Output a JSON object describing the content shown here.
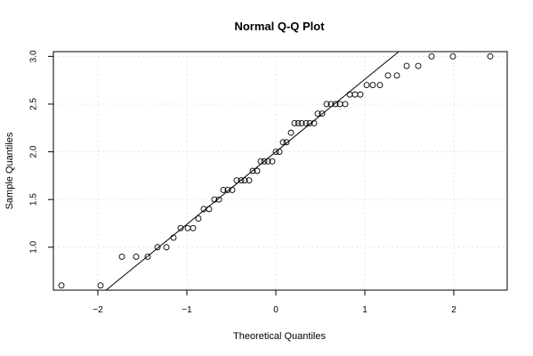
{
  "chart_data": {
    "type": "scatter",
    "title": "Normal Q-Q Plot",
    "xlabel": "Theoretical Quantiles",
    "ylabel": "Sample Quantiles",
    "xlim": [
      -2.5,
      2.6
    ],
    "ylim": [
      0.55,
      3.05
    ],
    "x_ticks": [
      -2,
      -1,
      0,
      1,
      2
    ],
    "x_tick_labels": [
      "−2",
      "−1",
      "0",
      "1",
      "2"
    ],
    "y_ticks": [
      1.0,
      1.5,
      2.0,
      2.5,
      3.0
    ],
    "y_tick_labels": [
      "1.0",
      "1.5",
      "2.0",
      "2.5",
      "3.0"
    ],
    "grid": true,
    "reference_line": {
      "intercept": 2.0,
      "slope": 0.76
    },
    "points": [
      {
        "x": -2.41,
        "y": 0.6
      },
      {
        "x": -1.97,
        "y": 0.6
      },
      {
        "x": -1.73,
        "y": 0.9
      },
      {
        "x": -1.57,
        "y": 0.9
      },
      {
        "x": -1.44,
        "y": 0.9
      },
      {
        "x": -1.33,
        "y": 1.0
      },
      {
        "x": -1.23,
        "y": 1.0
      },
      {
        "x": -1.15,
        "y": 1.1
      },
      {
        "x": -1.07,
        "y": 1.2
      },
      {
        "x": -0.99,
        "y": 1.2
      },
      {
        "x": -0.93,
        "y": 1.2
      },
      {
        "x": -0.87,
        "y": 1.3
      },
      {
        "x": -0.81,
        "y": 1.4
      },
      {
        "x": -0.75,
        "y": 1.4
      },
      {
        "x": -0.69,
        "y": 1.5
      },
      {
        "x": -0.64,
        "y": 1.5
      },
      {
        "x": -0.59,
        "y": 1.6
      },
      {
        "x": -0.54,
        "y": 1.6
      },
      {
        "x": -0.49,
        "y": 1.6
      },
      {
        "x": -0.44,
        "y": 1.7
      },
      {
        "x": -0.39,
        "y": 1.7
      },
      {
        "x": -0.35,
        "y": 1.7
      },
      {
        "x": -0.3,
        "y": 1.7
      },
      {
        "x": -0.26,
        "y": 1.8
      },
      {
        "x": -0.21,
        "y": 1.8
      },
      {
        "x": -0.17,
        "y": 1.9
      },
      {
        "x": -0.13,
        "y": 1.9
      },
      {
        "x": -0.09,
        "y": 1.9
      },
      {
        "x": -0.04,
        "y": 1.9
      },
      {
        "x": -0.0,
        "y": 2.0
      },
      {
        "x": 0.04,
        "y": 2.0
      },
      {
        "x": 0.08,
        "y": 2.1
      },
      {
        "x": 0.12,
        "y": 2.1
      },
      {
        "x": 0.17,
        "y": 2.2
      },
      {
        "x": 0.21,
        "y": 2.3
      },
      {
        "x": 0.25,
        "y": 2.3
      },
      {
        "x": 0.29,
        "y": 2.3
      },
      {
        "x": 0.34,
        "y": 2.3
      },
      {
        "x": 0.38,
        "y": 2.3
      },
      {
        "x": 0.43,
        "y": 2.3
      },
      {
        "x": 0.47,
        "y": 2.4
      },
      {
        "x": 0.52,
        "y": 2.4
      },
      {
        "x": 0.57,
        "y": 2.5
      },
      {
        "x": 0.62,
        "y": 2.5
      },
      {
        "x": 0.67,
        "y": 2.5
      },
      {
        "x": 0.72,
        "y": 2.5
      },
      {
        "x": 0.78,
        "y": 2.5
      },
      {
        "x": 0.83,
        "y": 2.6
      },
      {
        "x": 0.89,
        "y": 2.6
      },
      {
        "x": 0.95,
        "y": 2.6
      },
      {
        "x": 1.02,
        "y": 2.7
      },
      {
        "x": 1.09,
        "y": 2.7
      },
      {
        "x": 1.17,
        "y": 2.7
      },
      {
        "x": 1.26,
        "y": 2.8
      },
      {
        "x": 1.36,
        "y": 2.8
      },
      {
        "x": 1.47,
        "y": 2.9
      },
      {
        "x": 1.6,
        "y": 2.9
      },
      {
        "x": 1.75,
        "y": 3.0
      },
      {
        "x": 1.99,
        "y": 3.0
      },
      {
        "x": 2.41,
        "y": 3.0
      }
    ]
  }
}
